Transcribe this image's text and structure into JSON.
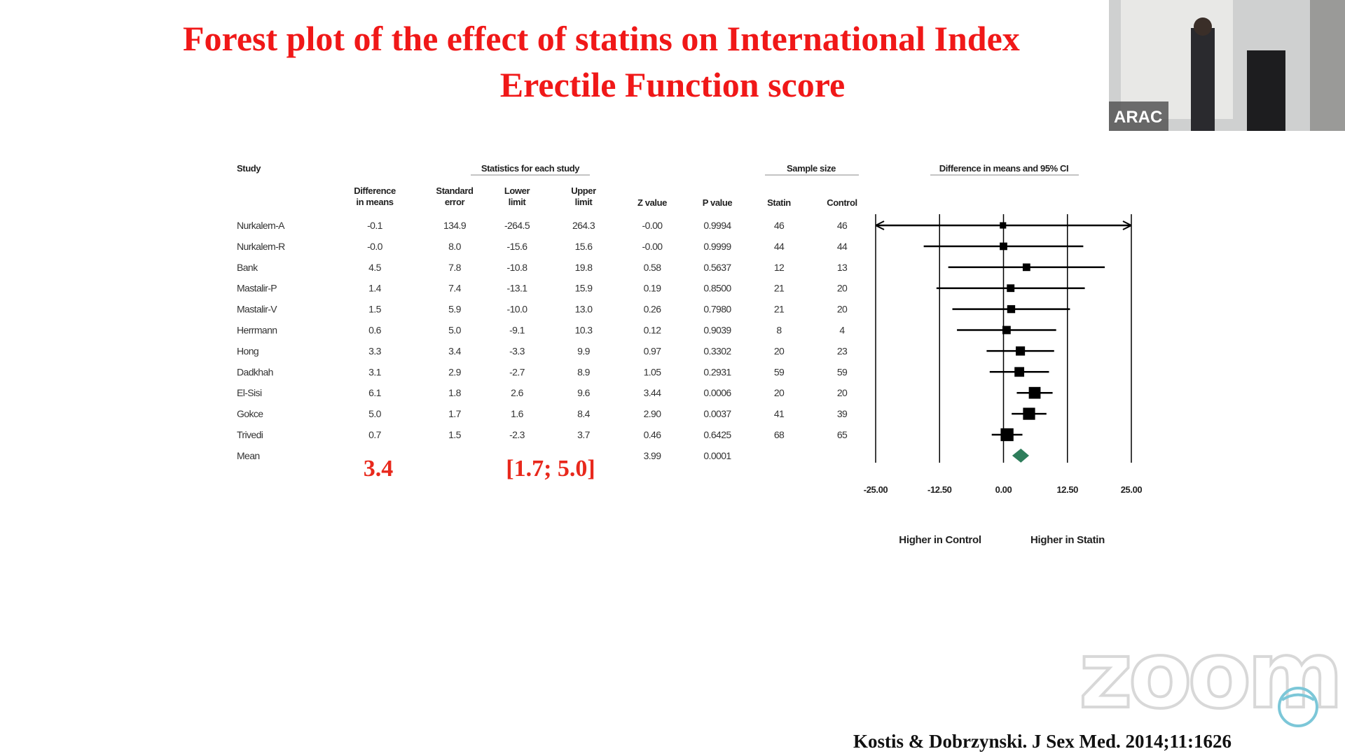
{
  "chart_data": {
    "type": "forest",
    "title": [
      "Forest plot of the effect of statins on International Index",
      "Erectile Function score"
    ],
    "header": {
      "study": "Study",
      "stats": "Statistics for each study",
      "sample": "Sample size",
      "plot": "Difference in means and 95% CI",
      "columns": [
        [
          "Difference",
          "in means"
        ],
        [
          "Standard",
          "error"
        ],
        [
          "Lower",
          "limit"
        ],
        [
          "Upper",
          "limit"
        ],
        [
          "Z value"
        ],
        [
          "P value"
        ],
        [
          "Statin"
        ],
        [
          "Control"
        ]
      ]
    },
    "studies": [
      {
        "name": "Nurkalem-A",
        "diff": -0.1,
        "se": 134.9,
        "lower": -264.5,
        "upper": 264.3,
        "z": {
          "value": 0,
          "label": "-0.00"
        },
        "p": 0.9994,
        "statin": 46,
        "control": 46
      },
      {
        "name": "Nurkalem-R",
        "diff": {
          "value": 0,
          "label": "-0.0"
        },
        "se": {
          "value": 8,
          "label": "8.0"
        },
        "lower": -15.6,
        "upper": 15.6,
        "z": {
          "value": 0,
          "label": "-0.00"
        },
        "p": 0.9999,
        "statin": 44,
        "control": 44
      },
      {
        "name": "Bank",
        "diff": 4.5,
        "se": 7.8,
        "lower": -10.8,
        "upper": 19.8,
        "z": 0.58,
        "p": 0.5637,
        "statin": 12,
        "control": 13
      },
      {
        "name": "Mastalir-P",
        "diff": 1.4,
        "se": 7.4,
        "lower": -13.1,
        "upper": 15.9,
        "z": 0.19,
        "p": {
          "value": 0.85,
          "label": "0.8500"
        },
        "statin": 21,
        "control": 20
      },
      {
        "name": "Mastalir-V",
        "diff": 1.5,
        "se": 5.9,
        "lower": {
          "value": -10,
          "label": "-10.0"
        },
        "upper": {
          "value": 13,
          "label": "13.0"
        },
        "z": 0.26,
        "p": {
          "value": 0.798,
          "label": "0.7980"
        },
        "statin": 21,
        "control": 20
      },
      {
        "name": "Herrmann",
        "diff": 0.6,
        "se": {
          "value": 5,
          "label": "5.0"
        },
        "lower": -9.1,
        "upper": 10.3,
        "z": 0.12,
        "p": 0.9039,
        "statin": 8,
        "control": 4
      },
      {
        "name": "Hong",
        "diff": 3.3,
        "se": 3.4,
        "lower": -3.3,
        "upper": 9.9,
        "z": 0.97,
        "p": 0.3302,
        "statin": 20,
        "control": 23
      },
      {
        "name": "Dadkhah",
        "diff": 3.1,
        "se": 2.9,
        "lower": -2.7,
        "upper": 8.9,
        "z": 1.05,
        "p": 0.2931,
        "statin": 59,
        "control": 59
      },
      {
        "name": "El-Sisi",
        "diff": 6.1,
        "se": 1.8,
        "lower": 2.6,
        "upper": 9.6,
        "z": 3.44,
        "p": 0.0006,
        "statin": 20,
        "control": 20
      },
      {
        "name": "Gokce",
        "diff": {
          "value": 5,
          "label": "5.0"
        },
        "se": 1.7,
        "lower": 1.6,
        "upper": 8.4,
        "z": {
          "value": 2.9,
          "label": "2.90"
        },
        "p": 0.0037,
        "statin": 41,
        "control": 39
      },
      {
        "name": "Trivedi",
        "diff": 0.7,
        "se": 1.5,
        "lower": -2.3,
        "upper": 3.7,
        "z": 0.46,
        "p": 0.6425,
        "statin": 68,
        "control": 65
      }
    ],
    "mean": {
      "name": "Mean",
      "diff": 3.4,
      "ci_label": "[1.7;  5.0]",
      "lower": 1.7,
      "upper": {
        "value": 5,
        "label": "5.0"
      },
      "z": 3.99,
      "p": 0.0001
    },
    "xlim": [
      -25,
      25
    ],
    "xticks": [
      {
        "value": -25,
        "label": "-25.00"
      },
      {
        "value": -12.5,
        "label": "-12.50"
      },
      {
        "value": 0,
        "label": "0.00"
      },
      {
        "value": 12.5,
        "label": "12.50"
      },
      {
        "value": 25,
        "label": "25.00"
      }
    ],
    "xlabels": [
      "Higher in Control",
      "Higher in Statin"
    ],
    "marker_color": "#000000",
    "diamond_color": "#2e7d5b"
  },
  "citation": "Kostis & Dobrzynski. J Sex Med. 2014;11:1626",
  "overlay": {
    "video_label": "ARAC",
    "watermark": "zoom"
  }
}
